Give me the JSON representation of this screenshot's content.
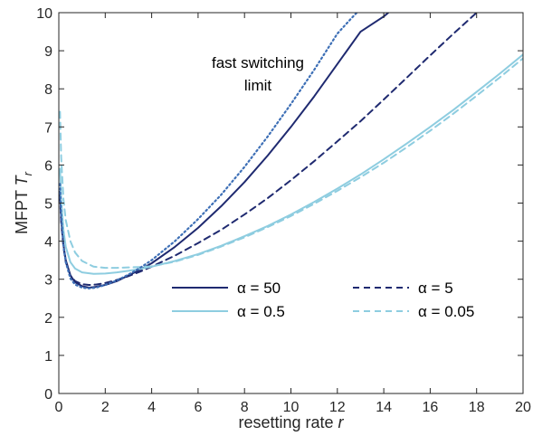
{
  "chart_data": {
    "type": "line",
    "title": "",
    "xlabel_text": "resetting rate ",
    "xlabel_var": "r",
    "ylabel_text": "MFPT ",
    "ylabel_var": "T",
    "ylabel_sub": "r",
    "xlim": [
      0,
      20
    ],
    "ylim": [
      0,
      10
    ],
    "xticks": [
      0,
      2,
      4,
      6,
      8,
      10,
      12,
      14,
      16,
      18,
      20
    ],
    "yticks": [
      0,
      1,
      2,
      3,
      4,
      5,
      6,
      7,
      8,
      9,
      10
    ],
    "grid": false,
    "legend_location": "lower-center-right",
    "annotation_line1": "fast switching",
    "annotation_line2": "limit",
    "colors": {
      "dark": "#1f2a70",
      "light": "#8ecde0",
      "dotted": "#3d6fb6",
      "axis": "#262626"
    },
    "series": [
      {
        "name": "α = 50",
        "style": "solid",
        "color": "dark",
        "x": [
          0.05,
          0.1,
          0.2,
          0.3,
          0.5,
          0.7,
          1,
          1.3,
          1.6,
          2,
          2.5,
          3,
          3.5,
          4,
          5,
          6,
          7,
          8,
          9,
          10,
          11,
          12,
          13,
          14,
          14.2
        ],
        "y": [
          5.3,
          4.6,
          3.9,
          3.5,
          3.1,
          2.92,
          2.82,
          2.78,
          2.8,
          2.85,
          2.95,
          3.1,
          3.25,
          3.42,
          3.85,
          4.35,
          4.92,
          5.55,
          6.25,
          7.0,
          7.8,
          8.65,
          9.5,
          9.9,
          10.0
        ]
      },
      {
        "name": "α = 5",
        "style": "dashed",
        "color": "dark",
        "x": [
          0.05,
          0.1,
          0.2,
          0.3,
          0.5,
          0.7,
          1,
          1.3,
          1.6,
          2,
          2.5,
          3,
          3.5,
          4,
          5,
          6,
          7,
          8,
          9,
          10,
          11,
          12,
          13,
          14,
          15,
          16,
          17,
          18,
          19
        ],
        "y": [
          5.2,
          4.5,
          3.85,
          3.45,
          3.1,
          2.95,
          2.87,
          2.85,
          2.86,
          2.9,
          2.98,
          3.08,
          3.2,
          3.33,
          3.62,
          3.95,
          4.3,
          4.7,
          5.13,
          5.6,
          6.1,
          6.62,
          7.15,
          7.72,
          8.3,
          8.88,
          9.45,
          10.0,
          10.6
        ]
      },
      {
        "name": "α = 0.5",
        "style": "solid",
        "color": "light",
        "x": [
          0.05,
          0.1,
          0.2,
          0.3,
          0.5,
          0.7,
          1,
          1.5,
          2,
          2.5,
          3,
          3.5,
          4,
          5,
          6,
          7,
          8,
          9,
          10,
          11,
          12,
          13,
          14,
          15,
          16,
          17,
          18,
          19,
          20
        ],
        "y": [
          5.9,
          5.1,
          4.3,
          3.85,
          3.45,
          3.28,
          3.18,
          3.14,
          3.15,
          3.18,
          3.22,
          3.27,
          3.33,
          3.48,
          3.66,
          3.88,
          4.13,
          4.4,
          4.7,
          5.03,
          5.38,
          5.75,
          6.15,
          6.57,
          7.0,
          7.45,
          7.92,
          8.4,
          8.9
        ]
      },
      {
        "name": "α = 0.05",
        "style": "dashed",
        "color": "light",
        "x": [
          0.05,
          0.1,
          0.2,
          0.3,
          0.5,
          0.7,
          1,
          1.5,
          2,
          2.5,
          3,
          3.5,
          4,
          5,
          6,
          7,
          8,
          9,
          10,
          11,
          12,
          13,
          14,
          15,
          16,
          17,
          18,
          19,
          20
        ],
        "y": [
          7.4,
          6.2,
          5.1,
          4.55,
          4.0,
          3.7,
          3.48,
          3.33,
          3.3,
          3.3,
          3.31,
          3.32,
          3.34,
          3.46,
          3.64,
          3.86,
          4.1,
          4.37,
          4.66,
          4.98,
          5.32,
          5.68,
          6.06,
          6.47,
          6.9,
          7.35,
          7.82,
          8.3,
          8.8
        ]
      },
      {
        "name": "",
        "style": "dotted",
        "color": "dotted",
        "x": [
          0.05,
          0.1,
          0.2,
          0.3,
          0.5,
          0.7,
          1,
          1.3,
          1.6,
          2,
          2.5,
          3,
          3.5,
          4,
          5,
          6,
          7,
          8,
          9,
          10,
          11,
          12,
          12.6,
          13
        ],
        "y": [
          5.5,
          4.7,
          3.9,
          3.45,
          3.02,
          2.86,
          2.78,
          2.76,
          2.78,
          2.85,
          2.97,
          3.12,
          3.3,
          3.5,
          4.0,
          4.58,
          5.22,
          5.95,
          6.75,
          7.6,
          8.5,
          9.45,
          9.85,
          10.1
        ]
      }
    ],
    "legend": [
      {
        "label": "α = 50",
        "style": "solid",
        "color": "dark"
      },
      {
        "label": "α = 5",
        "style": "dashed",
        "color": "dark"
      },
      {
        "label": "α = 0.5",
        "style": "solid",
        "color": "light"
      },
      {
        "label": "α = 0.05",
        "style": "dashed",
        "color": "light"
      }
    ]
  }
}
